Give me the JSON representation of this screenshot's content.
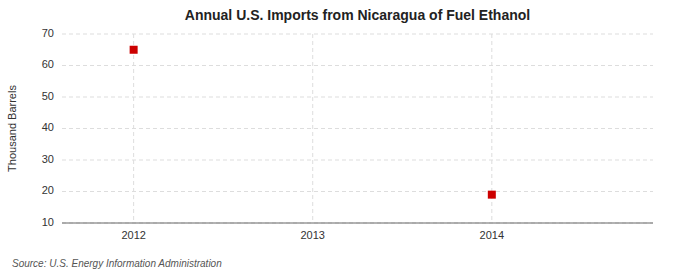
{
  "chart_data": {
    "type": "scatter",
    "title": "Annual U.S. Imports from Nicaragua of Fuel Ethanol",
    "ylabel": "Thousand Barrels",
    "source": "Source: U.S. Energy Information Administration",
    "x": [
      2012,
      2014
    ],
    "values": [
      65,
      19
    ],
    "xlim": [
      2011.6,
      2014.9
    ],
    "ylim": [
      10,
      70
    ],
    "xticks": [
      2012,
      2013,
      2014
    ],
    "yticks": [
      10,
      20,
      30,
      40,
      50,
      60,
      70
    ],
    "color": "#cc0000",
    "marker": "square",
    "grid": true
  }
}
